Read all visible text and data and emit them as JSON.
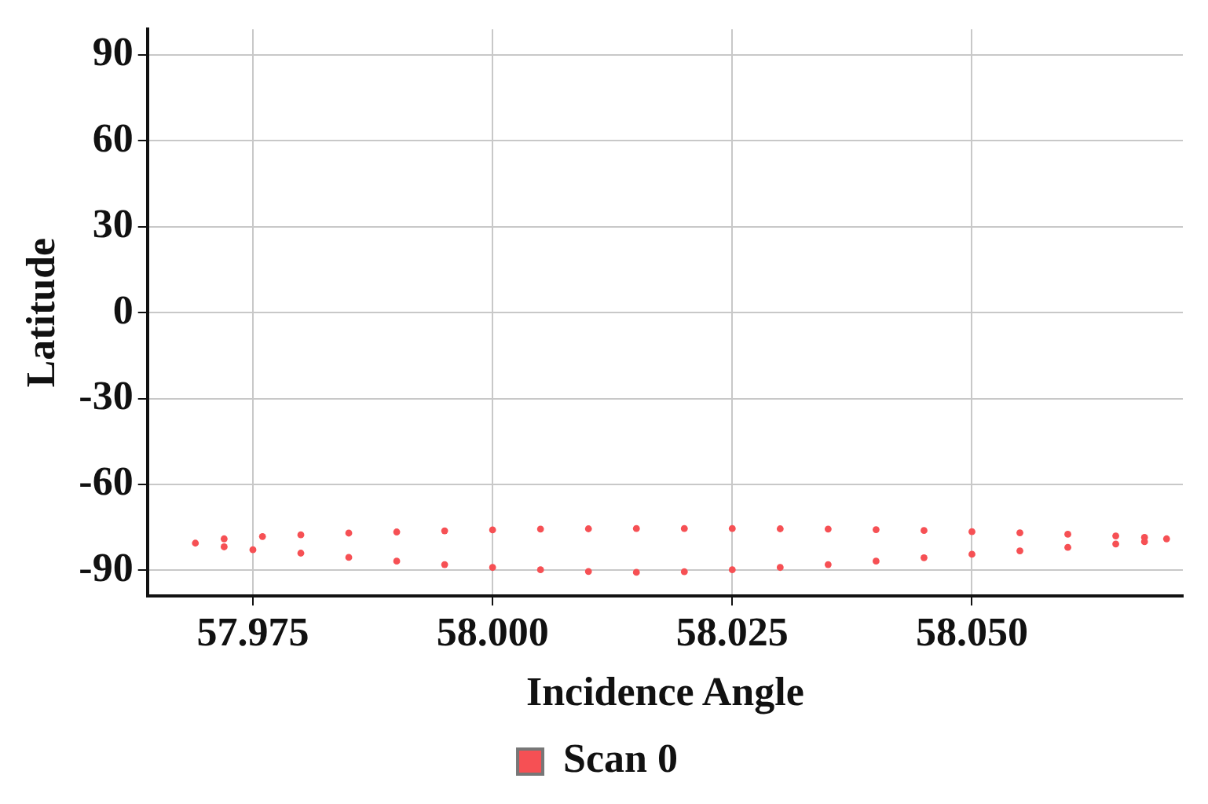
{
  "chart_data": {
    "type": "scatter",
    "xlabel": "Incidence Angle",
    "ylabel": "Latitude",
    "xlim": [
      57.964,
      58.072
    ],
    "xticks": [
      {
        "value": 57.975,
        "label": "57.975"
      },
      {
        "value": 58.0,
        "label": "58.000"
      },
      {
        "value": 58.025,
        "label": "58.025"
      },
      {
        "value": 58.05,
        "label": "58.050"
      }
    ],
    "ylim": [
      -99,
      99
    ],
    "yticks": [
      -90,
      -60,
      -30,
      0,
      30,
      60,
      90
    ],
    "grid": true,
    "legend": "bottom",
    "marker": "circle",
    "series": [
      {
        "name": "Scan 0",
        "color": "#f65054",
        "x": [
          57.969,
          57.972,
          57.976,
          57.98,
          57.985,
          57.99,
          57.995,
          58.0,
          58.005,
          58.01,
          58.015,
          58.02,
          58.025,
          58.03,
          58.035,
          58.04,
          58.045,
          58.05,
          58.055,
          58.06,
          58.065,
          58.068,
          58.0703,
          58.068,
          58.065,
          58.06,
          58.055,
          58.05,
          58.045,
          58.04,
          58.035,
          58.03,
          58.025,
          58.02,
          58.015,
          58.01,
          58.005,
          58.0,
          57.995,
          57.99,
          57.985,
          57.98,
          57.975,
          57.972
        ],
        "values": [
          -80.5,
          -79.0,
          -78.2,
          -77.6,
          -77.0,
          -76.6,
          -76.2,
          -75.9,
          -75.6,
          -75.5,
          -75.4,
          -75.4,
          -75.4,
          -75.5,
          -75.6,
          -75.8,
          -76.1,
          -76.5,
          -76.9,
          -77.4,
          -78.0,
          -78.5,
          -79.0,
          -80.0,
          -80.8,
          -82.0,
          -83.2,
          -84.4,
          -85.6,
          -86.8,
          -88.0,
          -89.0,
          -89.8,
          -90.5,
          -90.7,
          -90.4,
          -89.8,
          -89.0,
          -88.0,
          -86.8,
          -85.5,
          -84.0,
          -82.8,
          -81.8
        ]
      }
    ]
  }
}
